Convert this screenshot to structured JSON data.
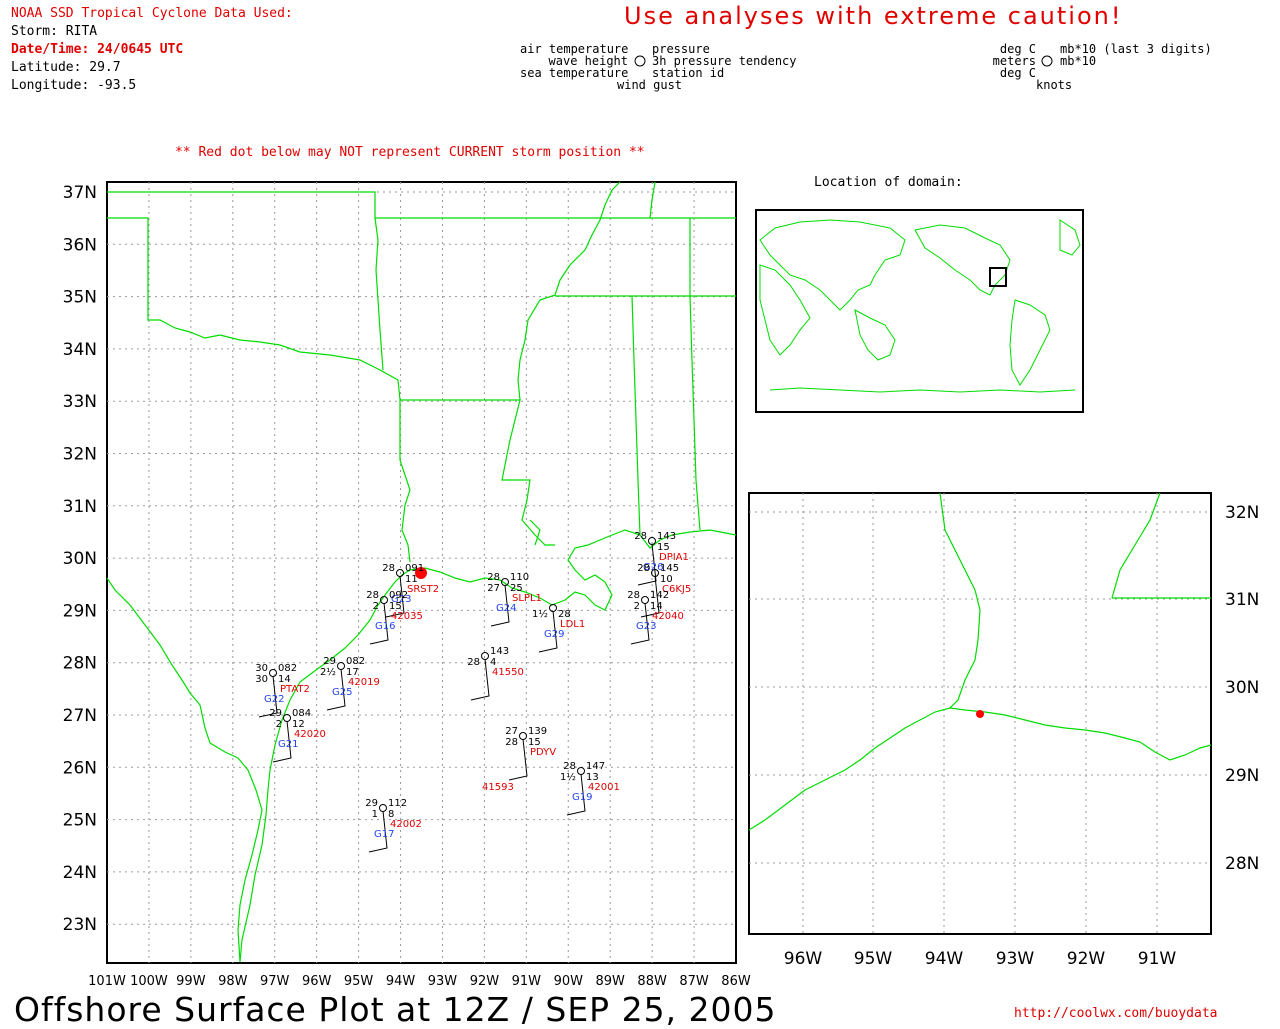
{
  "header": {
    "source": "NOAA SSD Tropical Cyclone Data Used:",
    "storm": "Storm: RITA",
    "datetime": "Date/Time: 24/0645 UTC",
    "latitude": "Latitude: 29.7",
    "longitude": "Longitude: -93.5",
    "caution": "Use analyses with extreme caution!"
  },
  "legend": {
    "left": [
      "air temperature",
      "wave height",
      "sea temperature"
    ],
    "center_right": [
      "pressure",
      "3h pressure tendency",
      "station id",
      "wind gust"
    ],
    "units_left": [
      "deg C",
      "meters",
      "deg C"
    ],
    "units_right": [
      "mb*10 (last 3 digits)",
      "mb*10",
      "knots"
    ]
  },
  "note": "** Red dot below may NOT represent CURRENT storm position **",
  "inset": {
    "label": "Location of domain:"
  },
  "main_map": {
    "lat_ticks": [
      "37N",
      "36N",
      "35N",
      "34N",
      "33N",
      "32N",
      "31N",
      "30N",
      "29N",
      "28N",
      "27N",
      "26N",
      "25N",
      "24N",
      "23N"
    ],
    "lon_ticks": [
      "101W",
      "100W",
      "99W",
      "98W",
      "97W",
      "96W",
      "95W",
      "94W",
      "93W",
      "92W",
      "91W",
      "90W",
      "89W",
      "88W",
      "87W",
      "86W"
    ],
    "stations": [
      {
        "id": "SRST2",
        "top_left": "28",
        "top_right": "091",
        "mid_left": "",
        "mid_right": "11",
        "gust": "G23"
      },
      {
        "id": "42035",
        "top_left": "28",
        "top_right": "092",
        "mid_left": "2",
        "mid_right": "15",
        "gust": "G16"
      },
      {
        "id": "SLPL1",
        "top_left": "28",
        "top_right": "110",
        "mid_left": "27",
        "mid_right": "25",
        "gust": "G24"
      },
      {
        "id": "LDL1",
        "top_left": "",
        "top_right": "",
        "mid_left": "1½",
        "mid_right": "28",
        "gust": "G29"
      },
      {
        "id": "DPIA1",
        "top_left": "28",
        "top_right": "143",
        "mid_left": "",
        "mid_right": "15",
        "gust": "G26"
      },
      {
        "id": "C6KJ5",
        "top_left": "28",
        "top_right": "145",
        "mid_left": "",
        "mid_right": "10",
        "gust": ""
      },
      {
        "id": "42040",
        "top_left": "28",
        "top_right": "142",
        "mid_left": "2",
        "mid_right": "14",
        "gust": "G23"
      },
      {
        "id": "41550",
        "top_left": "",
        "top_right": "143",
        "mid_left": "28",
        "mid_right": "4",
        "gust": ""
      },
      {
        "id": "PTAT2",
        "top_left": "30",
        "top_right": "082",
        "mid_left": "30",
        "mid_right": "14",
        "gust": "G22"
      },
      {
        "id": "42019",
        "top_left": "29",
        "top_right": "082",
        "mid_left": "2½",
        "mid_right": "17",
        "gust": "G25"
      },
      {
        "id": "42020",
        "top_left": "29",
        "top_right": "084",
        "mid_left": "2",
        "mid_right": "12",
        "gust": "G21"
      },
      {
        "id": "PDYV",
        "top_left": "27",
        "top_right": "139",
        "mid_left": "28",
        "mid_right": "15",
        "gust": ""
      },
      {
        "id": "42001",
        "top_left": "28",
        "top_right": "147",
        "mid_left": "1½",
        "mid_right": "13",
        "gust": "G19"
      },
      {
        "id": "41593",
        "top_left": "",
        "top_right": "",
        "mid_left": "",
        "mid_right": "",
        "gust": ""
      },
      {
        "id": "42002",
        "top_left": "29",
        "top_right": "112",
        "mid_left": "1",
        "mid_right": "8",
        "gust": "G17"
      }
    ]
  },
  "zoom_map": {
    "lat_ticks": [
      "32N",
      "31N",
      "30N",
      "29N",
      "28N"
    ],
    "lon_ticks": [
      "96W",
      "95W",
      "94W",
      "93W",
      "92W",
      "91W"
    ]
  },
  "footer": {
    "title": "Offshore Surface Plot at 12Z / SEP 25, 2005",
    "url": "http://coolwx.com/buoydata"
  },
  "colors": {
    "coast": "#00dd00",
    "grid": "#9a9a9a",
    "station_id": "#e00000",
    "gust": "#2244ee",
    "storm_dot": "#ff0000"
  }
}
